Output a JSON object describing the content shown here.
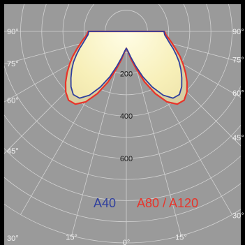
{
  "chart_data": {
    "type": "polar",
    "title": "",
    "angle_unit": "degrees",
    "angle_ticks": [
      {
        "label": "90°",
        "value": 90,
        "side": "left"
      },
      {
        "label": "90°",
        "value": 90,
        "side": "right"
      },
      {
        "label": "75°",
        "value": 75,
        "side": "left"
      },
      {
        "label": "75°",
        "value": 75,
        "side": "right"
      },
      {
        "label": "60°",
        "value": 60,
        "side": "left"
      },
      {
        "label": "60°",
        "value": 60,
        "side": "right"
      },
      {
        "label": "45°",
        "value": 45,
        "side": "left"
      },
      {
        "label": "45°",
        "value": 45,
        "side": "right"
      },
      {
        "label": "30°",
        "value": 30,
        "side": "left"
      },
      {
        "label": "30°",
        "value": 30,
        "side": "right"
      },
      {
        "label": "15°",
        "value": 15,
        "side": "left"
      },
      {
        "label": "15°",
        "value": 15,
        "side": "right"
      },
      {
        "label": "0°",
        "value": 0,
        "side": "center"
      }
    ],
    "radial_ticks": [
      {
        "label": "200",
        "value": 200
      },
      {
        "label": "400",
        "value": 400
      },
      {
        "label": "600",
        "value": 600
      }
    ],
    "rlim": [
      0,
      1000
    ],
    "grid": true,
    "legend": [
      {
        "label": "A40",
        "color": "#2f3f9e"
      },
      {
        "label": "A80 / A120",
        "color": "#e8342a"
      }
    ],
    "series": [
      {
        "name": "A40",
        "color": "#2f3f9e",
        "angles": [
          0,
          5,
          10,
          15,
          20,
          25,
          30,
          35,
          40,
          45,
          50,
          55,
          60,
          65,
          70,
          75,
          80,
          85,
          90
        ],
        "values": [
          80,
          95,
          125,
          168,
          228,
          290,
          348,
          385,
          390,
          370,
          342,
          315,
          288,
          260,
          235,
          212,
          195,
          182,
          178
        ]
      },
      {
        "name": "A80 / A120",
        "color": "#e8342a",
        "angles": [
          0,
          5,
          10,
          15,
          20,
          25,
          30,
          35,
          40,
          45,
          50,
          55,
          60,
          65,
          70,
          75,
          80,
          85,
          90
        ],
        "values": [
          80,
          97,
          135,
          185,
          255,
          325,
          385,
          420,
          425,
          405,
          375,
          342,
          310,
          280,
          250,
          225,
          205,
          188,
          180
        ]
      }
    ]
  }
}
